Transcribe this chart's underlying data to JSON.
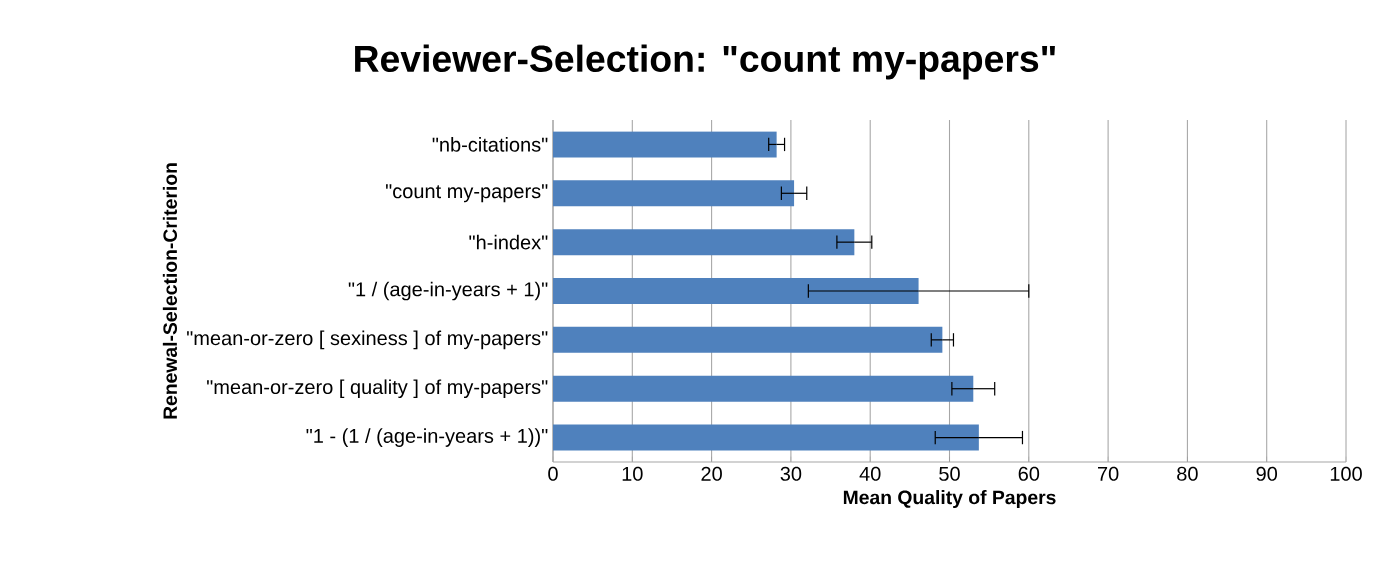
{
  "chart_data": {
    "type": "bar",
    "orientation": "horizontal",
    "title": "Reviewer-Selection: \"count my-papers\"",
    "xlabel": "Mean Quality of Papers",
    "ylabel": "Renewal-Selection-Criterion",
    "categories": [
      "\"nb-citations\"",
      "\"count my-papers\"",
      "\"h-index\"",
      "\"1 / (age-in-years + 1)\"",
      "\"mean-or-zero [ sexiness ] of my-papers\"",
      "\"mean-or-zero [ quality ] of my-papers\"",
      "\"1 - (1 / (age-in-years + 1))\""
    ],
    "values": [
      28.2,
      30.4,
      38.0,
      46.1,
      49.1,
      53.0,
      53.7
    ],
    "errors": [
      1.0,
      1.6,
      2.2,
      13.9,
      1.4,
      2.7,
      5.5
    ],
    "color": "#4f81bd",
    "xlim": [
      0,
      100
    ],
    "xticks": [
      0,
      10,
      20,
      30,
      40,
      50,
      60,
      70,
      80,
      90,
      100
    ],
    "grid": "x"
  }
}
